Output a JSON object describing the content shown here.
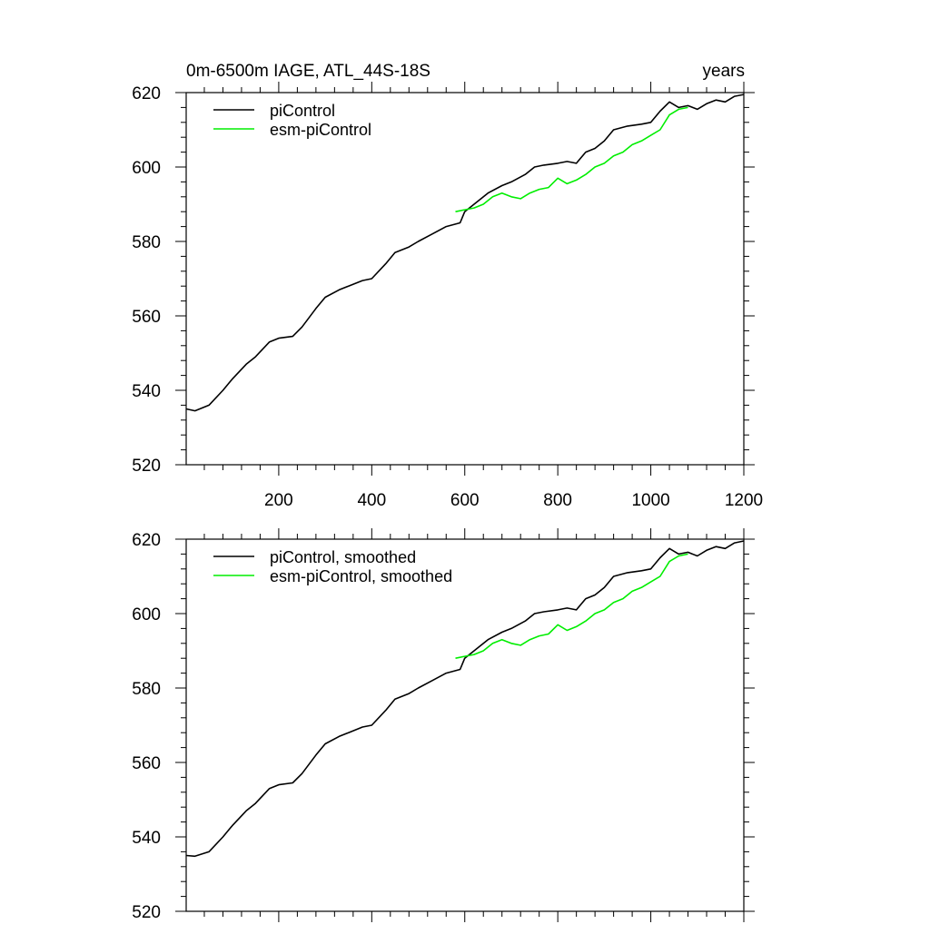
{
  "chart_data": [
    {
      "type": "line",
      "title": "0m-6500m IAGE, ATL_44S-18S",
      "units_label": "years",
      "xlim": [
        1,
        1200
      ],
      "ylim": [
        520,
        620
      ],
      "x_ticks": [
        200,
        400,
        600,
        800,
        1000,
        1200
      ],
      "x_tick_labels": [
        "200",
        "400",
        "600",
        "800",
        "1000",
        "1200"
      ],
      "y_ticks": [
        520,
        540,
        560,
        580,
        600,
        620
      ],
      "y_tick_labels": [
        "520",
        "540",
        "560",
        "580",
        "600",
        "620"
      ],
      "legend_position": "top-left",
      "series": [
        {
          "name": "piControl",
          "color": "#000000",
          "x": [
            1,
            20,
            50,
            80,
            100,
            130,
            150,
            180,
            200,
            230,
            250,
            280,
            300,
            330,
            350,
            380,
            400,
            430,
            450,
            480,
            500,
            530,
            560,
            590,
            600,
            620,
            650,
            680,
            700,
            730,
            750,
            770,
            800,
            820,
            840,
            860,
            880,
            900,
            920,
            950,
            980,
            1000,
            1020,
            1040,
            1060,
            1080,
            1100,
            1120,
            1140,
            1160,
            1180,
            1200
          ],
          "values": [
            535,
            534.5,
            536,
            540,
            543,
            547,
            549,
            553,
            554,
            554.5,
            557,
            562,
            565,
            567,
            568,
            569.5,
            570,
            574,
            577,
            578.5,
            580,
            582,
            584,
            585,
            588,
            590,
            593,
            595,
            596,
            598,
            600,
            600.5,
            601,
            601.5,
            601,
            604,
            605,
            607,
            610,
            611,
            611.5,
            612,
            615,
            617.5,
            616,
            616.5,
            615.5,
            617,
            618,
            617.5,
            619,
            619.5
          ]
        },
        {
          "name": "esm-piControl",
          "color": "#00ee00",
          "x": [
            580,
            600,
            620,
            640,
            660,
            680,
            700,
            720,
            740,
            760,
            780,
            800,
            820,
            840,
            860,
            880,
            900,
            920,
            940,
            960,
            980,
            1000,
            1020,
            1040,
            1060,
            1080
          ],
          "values": [
            588,
            588.5,
            589,
            590,
            592,
            593,
            592,
            591.5,
            593,
            594,
            594.5,
            597,
            595.5,
            596.5,
            598,
            600,
            601,
            603,
            604,
            606,
            607,
            608.5,
            610,
            614,
            615.5,
            616
          ]
        }
      ]
    },
    {
      "type": "line",
      "title": "",
      "xlim": [
        1,
        1200
      ],
      "ylim": [
        520,
        620
      ],
      "y_ticks": [
        520,
        540,
        560,
        580,
        600,
        620
      ],
      "y_tick_labels": [
        "520",
        "540",
        "560",
        "580",
        "600",
        "620"
      ],
      "x_ticks": [
        200,
        400,
        600,
        800,
        1000,
        1200
      ],
      "legend_position": "top-left",
      "series": [
        {
          "name": "piControl, smoothed",
          "color": "#000000",
          "x": [
            1,
            20,
            50,
            80,
            100,
            130,
            150,
            180,
            200,
            230,
            250,
            280,
            300,
            330,
            350,
            380,
            400,
            430,
            450,
            480,
            500,
            530,
            560,
            590,
            600,
            620,
            650,
            680,
            700,
            730,
            750,
            770,
            800,
            820,
            840,
            860,
            880,
            900,
            920,
            950,
            980,
            1000,
            1020,
            1040,
            1060,
            1080,
            1100,
            1120,
            1140,
            1160,
            1180,
            1200
          ],
          "values": [
            535,
            534.8,
            536,
            540,
            543,
            547,
            549,
            553,
            554,
            554.5,
            557,
            562,
            565,
            567,
            568,
            569.5,
            570,
            574,
            577,
            578.5,
            580,
            582,
            584,
            585,
            588,
            590,
            593,
            595,
            596,
            598,
            600,
            600.5,
            601,
            601.5,
            601,
            604,
            605,
            607,
            610,
            611,
            611.5,
            612,
            615,
            617.5,
            616,
            616.5,
            615.5,
            617,
            618,
            617.5,
            619,
            619.5
          ]
        },
        {
          "name": "esm-piControl, smoothed",
          "color": "#00ee00",
          "x": [
            580,
            600,
            620,
            640,
            660,
            680,
            700,
            720,
            740,
            760,
            780,
            800,
            820,
            840,
            860,
            880,
            900,
            920,
            940,
            960,
            980,
            1000,
            1020,
            1040,
            1060,
            1080
          ],
          "values": [
            588,
            588.5,
            589,
            590,
            592,
            593,
            592,
            591.5,
            593,
            594,
            594.5,
            597,
            595.5,
            596.5,
            598,
            600,
            601,
            603,
            604,
            606,
            607,
            608.5,
            610,
            614,
            615.5,
            616
          ]
        }
      ]
    }
  ]
}
